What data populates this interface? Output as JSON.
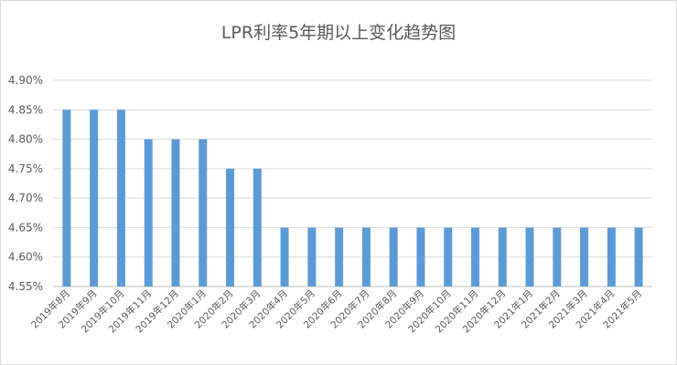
{
  "chart_data": {
    "type": "bar",
    "title": "LPR利率5年期以上变化趋势图",
    "xlabel": "",
    "ylabel": "",
    "ylim": [
      4.55,
      4.9
    ],
    "yticks": [
      "4.55%",
      "4.60%",
      "4.65%",
      "4.70%",
      "4.75%",
      "4.80%",
      "4.85%",
      "4.90%"
    ],
    "ytick_values": [
      4.55,
      4.6,
      4.65,
      4.7,
      4.75,
      4.8,
      4.85,
      4.9
    ],
    "grid": true,
    "legend": "none",
    "bar_color": "#5B9BD5",
    "categories": [
      "2019年8月",
      "2019年9月",
      "2019年10月",
      "2019年11月",
      "2019年12月",
      "2020年1月",
      "2020年2月",
      "2020年3月",
      "2020年4月",
      "2020年5月",
      "2020年6月",
      "2020年7月",
      "2020年8月",
      "2020年9月",
      "2020年10月",
      "2020年11月",
      "2020年12月",
      "2021年1月",
      "2021年2月",
      "2021年3月",
      "2021年4月",
      "2021年5月"
    ],
    "values": [
      4.85,
      4.85,
      4.85,
      4.8,
      4.8,
      4.8,
      4.75,
      4.75,
      4.65,
      4.65,
      4.65,
      4.65,
      4.65,
      4.65,
      4.65,
      4.65,
      4.65,
      4.65,
      4.65,
      4.65,
      4.65,
      4.65
    ]
  }
}
